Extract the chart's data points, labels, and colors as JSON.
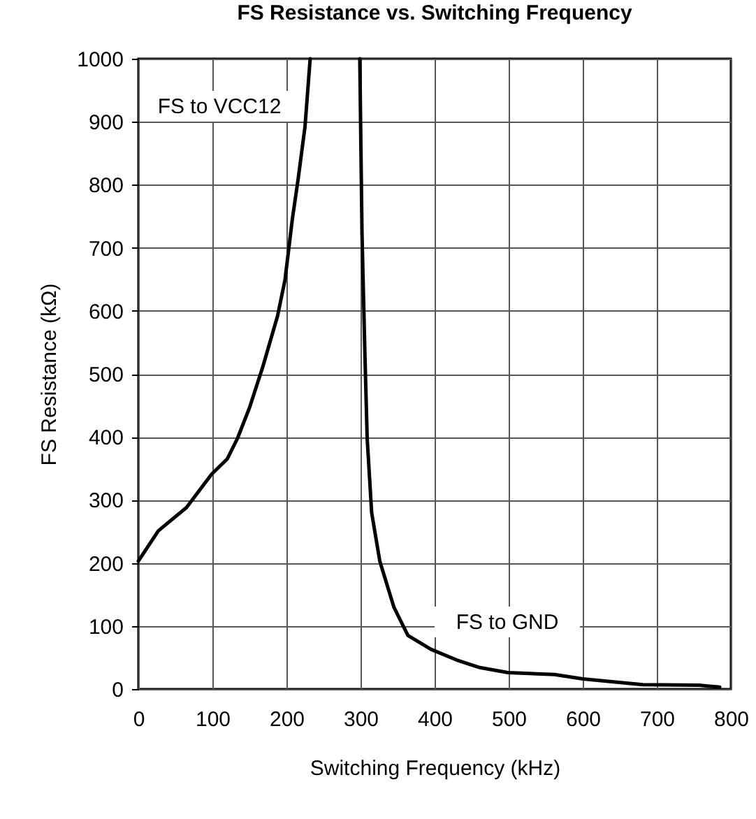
{
  "chart_data": {
    "type": "line",
    "title": "FS Resistance vs. Switching Frequency",
    "xlabel": "Switching Frequency (kHz)",
    "ylabel": "FS Resistance (kΩ)",
    "xlim": [
      0,
      800
    ],
    "xticks": [
      0,
      100,
      200,
      300,
      400,
      500,
      600,
      700,
      800
    ],
    "ylim": [
      0,
      1000
    ],
    "yticks": [
      0,
      100,
      200,
      300,
      400,
      500,
      600,
      700,
      800,
      900,
      {
        "value": 1000,
        "label": "1000"
      }
    ],
    "grid": true,
    "series": [
      {
        "color": "#000000",
        "x": [
          0,
          27,
          65,
          99,
          120,
          134,
          150,
          168,
          188,
          198,
          208,
          216,
          225,
          232
        ],
        "values": [
          203,
          251,
          288,
          341,
          365,
          398,
          446,
          511,
          592,
          649,
          746,
          811,
          892,
          1000
        ]
      },
      {
        "color": "#000000",
        "x": [
          299,
          302,
          306,
          309,
          315,
          326,
          345,
          364,
          395,
          430,
          461,
          499,
          562,
          600,
          644,
          681,
          757,
          785
        ],
        "values": [
          1000,
          722,
          527,
          397,
          280,
          203,
          130,
          85,
          63,
          46,
          34,
          26,
          23,
          16,
          11,
          7,
          6,
          3
        ]
      }
    ],
    "annotations": [
      "FS to VCC12",
      "FS to GND"
    ]
  }
}
